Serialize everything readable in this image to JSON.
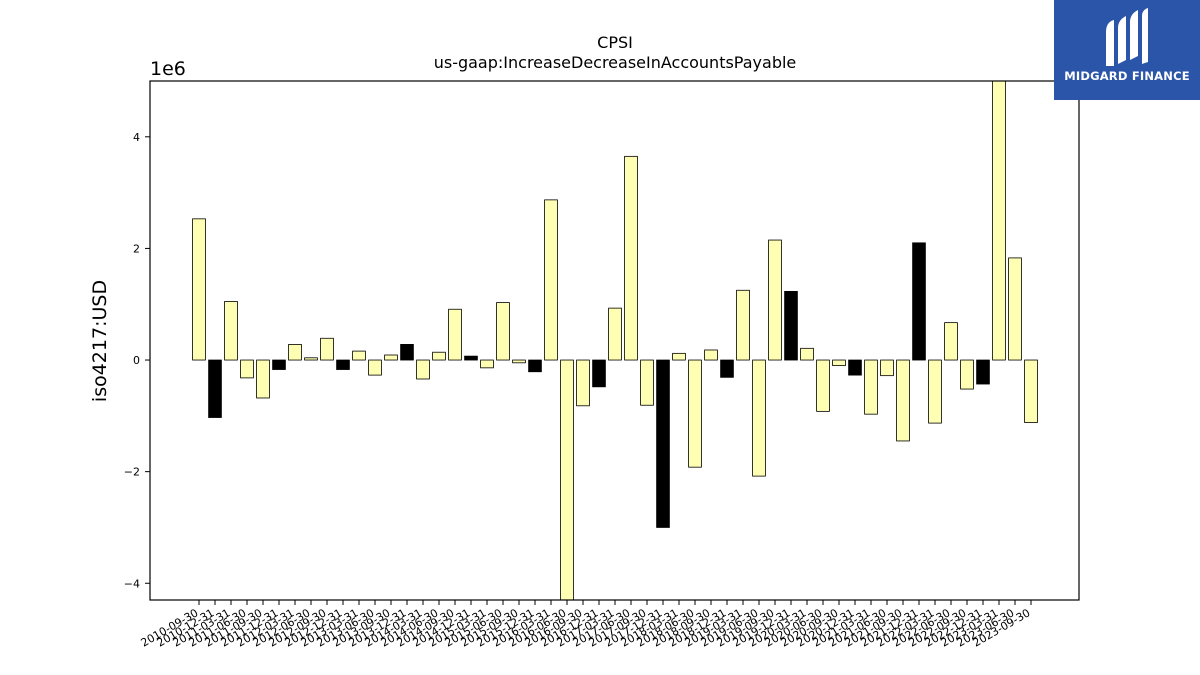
{
  "chart_data": {
    "type": "bar",
    "title": "CPSI",
    "subtitle": "us-gaap:IncreaseDecreaseInAccountsPayable",
    "ylabel": "iso4217:USD",
    "xlabel": "",
    "scale_label": "1e6",
    "ylim": [
      -4.3,
      5.0
    ],
    "yticks": [
      -4,
      -2,
      0,
      2,
      4
    ],
    "ytick_labels": [
      "−4",
      "−2",
      "0",
      "2",
      "4"
    ],
    "grid": false,
    "legend": "none",
    "categories": [
      "2010-09-30",
      "2010-12-31",
      "2011-03-31",
      "2011-06-30",
      "2011-09-30",
      "2011-12-31",
      "2012-03-31",
      "2012-06-30",
      "2012-09-30",
      "2012-12-31",
      "2013-03-31",
      "2013-06-30",
      "2013-09-30",
      "2013-12-31",
      "2014-03-31",
      "2014-06-30",
      "2014-09-30",
      "2014-12-31",
      "2015-03-31",
      "2015-06-30",
      "2015-09-30",
      "2015-12-31",
      "2016-03-31",
      "2016-06-30",
      "2016-09-30",
      "2016-12-31",
      "2017-03-31",
      "2017-06-30",
      "2017-09-30",
      "2017-12-31",
      "2018-03-31",
      "2018-06-30",
      "2018-09-30",
      "2018-12-31",
      "2019-03-31",
      "2019-06-30",
      "2019-09-30",
      "2019-12-31",
      "2020-03-31",
      "2020-06-30",
      "2020-09-30",
      "2020-12-31",
      "2021-03-31",
      "2021-06-30",
      "2021-09-30",
      "2021-12-31",
      "2022-03-31",
      "2022-06-30",
      "2022-09-30",
      "2022-12-31",
      "2023-03-31",
      "2023-06-30",
      "2023-09-30"
    ],
    "values": [
      2.53,
      -1.03,
      1.05,
      -0.32,
      -0.68,
      -0.17,
      0.28,
      0.04,
      0.39,
      -0.17,
      0.16,
      -0.27,
      0.09,
      0.28,
      -0.34,
      0.14,
      0.91,
      0.07,
      -0.14,
      1.03,
      -0.05,
      -0.21,
      2.87,
      -4.35,
      -0.82,
      -0.48,
      0.93,
      3.65,
      -0.81,
      -3.0,
      0.12,
      -1.92,
      0.18,
      -0.31,
      1.25,
      -2.08,
      2.15,
      1.23,
      0.21,
      -0.92,
      -0.1,
      -0.27,
      -0.97,
      -0.28,
      -1.45,
      2.1,
      -1.13,
      0.67,
      -0.52,
      -0.43,
      5.1,
      1.83,
      -1.12
    ],
    "bar_colors": [
      "#ffffb3",
      "#000000",
      "#ffffb3",
      "#ffffb3",
      "#ffffb3",
      "#000000",
      "#ffffb3",
      "#ffffb3",
      "#ffffb3",
      "#000000",
      "#ffffb3",
      "#ffffb3",
      "#ffffb3",
      "#000000",
      "#ffffb3",
      "#ffffb3",
      "#ffffb3",
      "#000000",
      "#ffffb3",
      "#ffffb3",
      "#ffffb3",
      "#000000",
      "#ffffb3",
      "#ffffb3",
      "#ffffb3",
      "#000000",
      "#ffffb3",
      "#ffffb3",
      "#ffffb3",
      "#000000",
      "#ffffb3",
      "#ffffb3",
      "#ffffb3",
      "#000000",
      "#ffffb3",
      "#ffffb3",
      "#ffffb3",
      "#000000",
      "#ffffb3",
      "#ffffb3",
      "#ffffb3",
      "#000000",
      "#ffffb3",
      "#ffffb3",
      "#ffffb3",
      "#000000",
      "#ffffb3",
      "#ffffb3",
      "#ffffb3",
      "#000000",
      "#ffffb3",
      "#ffffb3",
      "#ffffb3"
    ]
  },
  "brand": {
    "name": "MIDGARD FINANCE",
    "icon": "midgard-logo-icon",
    "background": "#2b55a8",
    "foreground": "#ffffff"
  }
}
